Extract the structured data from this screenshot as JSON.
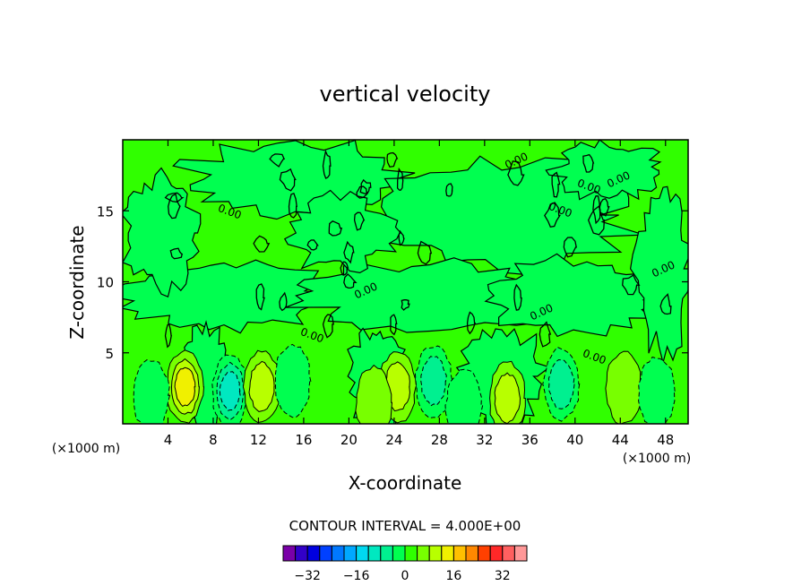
{
  "chart_data": {
    "type": "heatmap",
    "title": "vertical velocity",
    "xlabel": "X-coordinate",
    "ylabel": "Z-coordinate",
    "x_unit": "(×1000 m)",
    "z_unit": "(×1000 m)",
    "xlim": [
      0,
      50
    ],
    "ylim": [
      0,
      20
    ],
    "x_ticks": [
      4,
      8,
      12,
      16,
      20,
      24,
      28,
      32,
      36,
      40,
      44,
      48
    ],
    "y_ticks": [
      5,
      10,
      15
    ],
    "contour_interval_text": "CONTOUR INTERVAL = 4.000E+00",
    "contour_labels": [
      "0.00",
      "0.00",
      "0.00",
      "0.00",
      "0.00",
      "0.00",
      "0.00",
      "0.00",
      "0.00",
      "0.00"
    ],
    "colorbar": {
      "levels": [
        -36,
        -32,
        -28,
        -24,
        -20,
        -16,
        -12,
        -8,
        -4,
        0,
        4,
        8,
        12,
        16,
        20,
        24,
        28,
        32,
        36
      ],
      "colors": [
        "#7a00a8",
        "#3200c8",
        "#0000e0",
        "#0040ff",
        "#0078ff",
        "#00a8ff",
        "#00d8f0",
        "#00e8c0",
        "#00f090",
        "#00ff50",
        "#30ff00",
        "#78ff00",
        "#b8ff00",
        "#f0f000",
        "#ffc000",
        "#ff8800",
        "#ff4000",
        "#ff2828",
        "#ff6060",
        "#ff9898"
      ],
      "tick_labels": [
        "−32",
        "−16",
        "0",
        "16",
        "32"
      ],
      "tick_values": [
        -32,
        -16,
        0,
        16,
        32
      ]
    },
    "background_colors": {
      "near_zero_positive": "#30ff00",
      "near_zero_negative": "#00ff50"
    },
    "cells": [
      {
        "x": 5.5,
        "z": 2.6,
        "value": 10,
        "kind": "updraft"
      },
      {
        "x": 9.5,
        "z": 2.3,
        "value": -12,
        "kind": "downdraft"
      },
      {
        "x": 12.3,
        "z": 2.6,
        "value": 8,
        "kind": "updraft"
      },
      {
        "x": 15.0,
        "z": 3.0,
        "value": -4,
        "kind": "downdraft"
      },
      {
        "x": 24.3,
        "z": 2.6,
        "value": 6,
        "kind": "updraft"
      },
      {
        "x": 27.5,
        "z": 3.0,
        "value": -8,
        "kind": "downdraft"
      },
      {
        "x": 30.2,
        "z": 1.3,
        "value": -4,
        "kind": "downdraft"
      },
      {
        "x": 34.0,
        "z": 1.8,
        "value": 6,
        "kind": "updraft"
      },
      {
        "x": 38.8,
        "z": 2.8,
        "value": -6,
        "kind": "downdraft"
      },
      {
        "x": 44.3,
        "z": 2.5,
        "value": 5,
        "kind": "updraft"
      },
      {
        "x": 47.2,
        "z": 2.2,
        "value": -3,
        "kind": "downdraft"
      },
      {
        "x": 22.2,
        "z": 1.5,
        "value": 4,
        "kind": "updraft"
      },
      {
        "x": 2.5,
        "z": 2.0,
        "value": -3,
        "kind": "downdraft"
      }
    ]
  }
}
